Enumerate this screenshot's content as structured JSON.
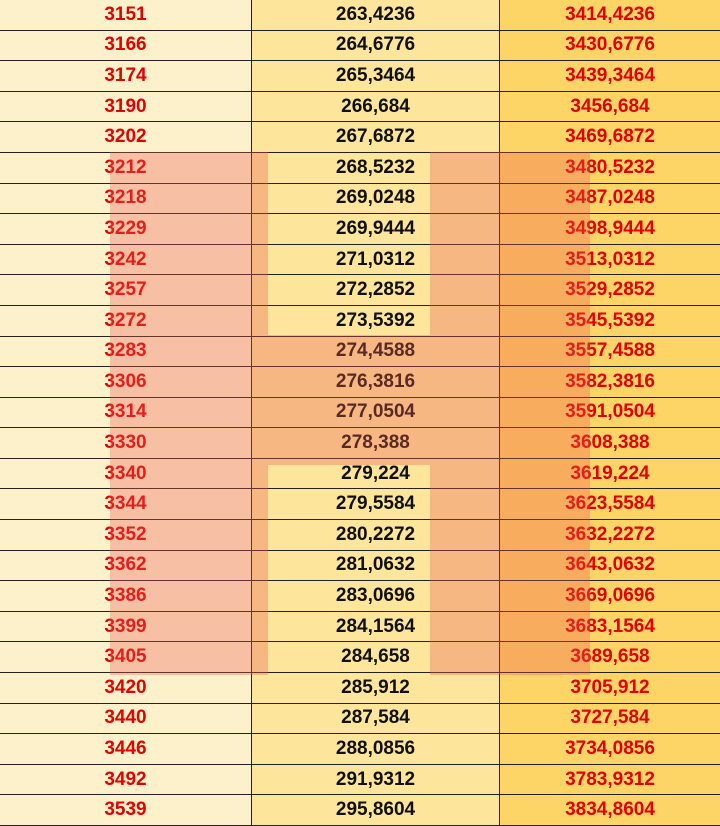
{
  "table": {
    "rows": [
      [
        "3151",
        "263,4236",
        "3414,4236"
      ],
      [
        "3166",
        "264,6776",
        "3430,6776"
      ],
      [
        "3174",
        "265,3464",
        "3439,3464"
      ],
      [
        "3190",
        "266,684",
        "3456,684"
      ],
      [
        "3202",
        "267,6872",
        "3469,6872"
      ],
      [
        "3212",
        "268,5232",
        "3480,5232"
      ],
      [
        "3218",
        "269,0248",
        "3487,0248"
      ],
      [
        "3229",
        "269,9444",
        "3498,9444"
      ],
      [
        "3242",
        "271,0312",
        "3513,0312"
      ],
      [
        "3257",
        "272,2852",
        "3529,2852"
      ],
      [
        "3272",
        "273,5392",
        "3545,5392"
      ],
      [
        "3283",
        "274,4588",
        "3557,4588"
      ],
      [
        "3306",
        "276,3816",
        "3582,3816"
      ],
      [
        "3314",
        "277,0504",
        "3591,0504"
      ],
      [
        "3330",
        "278,388",
        "3608,388"
      ],
      [
        "3340",
        "279,224",
        "3619,224"
      ],
      [
        "3344",
        "279,5584",
        "3623,5584"
      ],
      [
        "3352",
        "280,2272",
        "3632,2272"
      ],
      [
        "3362",
        "281,0632",
        "3643,0632"
      ],
      [
        "3386",
        "283,0696",
        "3669,0696"
      ],
      [
        "3399",
        "284,1564",
        "3683,1564"
      ],
      [
        "3405",
        "284,658",
        "3689,658"
      ],
      [
        "3420",
        "285,912",
        "3705,912"
      ],
      [
        "3440",
        "287,584",
        "3727,584"
      ],
      [
        "3446",
        "288,0856",
        "3734,0856"
      ],
      [
        "3492",
        "291,9312",
        "3783,9312"
      ],
      [
        "3539",
        "295,8604",
        "3834,8604"
      ]
    ]
  }
}
